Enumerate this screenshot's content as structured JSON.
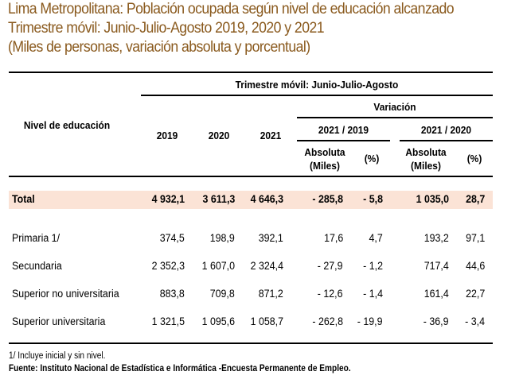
{
  "title": {
    "line1": "Lima Metropolitana: Población ocupada según nivel de educación alcanzado",
    "line2": "Trimestre móvil: Junio-Julio-Agosto  2019, 2020 y 2021",
    "line3": "(Miles de personas, variación absoluta y porcentual)"
  },
  "header": {
    "row_label": "Nivel de educación",
    "group": "Trimestre móvil: Junio-Julio-Agosto",
    "years": [
      "2019",
      "2020",
      "2021"
    ],
    "variation": "Variación",
    "comparisons": [
      "2021 / 2019",
      "2021 / 2020"
    ],
    "abs_line1": "Absoluta",
    "abs_line2": "(Miles)",
    "pct": "(%)"
  },
  "total": {
    "label": "Total",
    "values": [
      "4 932,1",
      "3 611,3",
      "4 646,3",
      "- 285,8",
      "- 5,8",
      "1 035,0",
      "28,7"
    ]
  },
  "rows": [
    {
      "label": "Primaria 1/",
      "values": [
        "374,5",
        "198,9",
        "392,1",
        "17,6",
        "4,7",
        "193,2",
        "97,1"
      ]
    },
    {
      "label": "Secundaria",
      "values": [
        "2 352,3",
        "1 607,0",
        "2 324,4",
        "- 27,9",
        "- 1,2",
        "717,4",
        "44,6"
      ]
    },
    {
      "label": "Superior no universitaria",
      "values": [
        "883,8",
        "709,8",
        "871,2",
        "- 12,6",
        "- 1,4",
        "161,4",
        "22,7"
      ]
    },
    {
      "label": "Superior universitaria",
      "values": [
        "1 321,5",
        "1 095,6",
        "1 058,7",
        "- 262,8",
        "- 19,9",
        "- 36,9",
        "- 3,4"
      ]
    }
  ],
  "footnote": "1/ Incluye inicial y sin nivel.",
  "source": "Fuente: Instituto Nacional de Estadística e Informática -Encuesta Permanente de Empleo.",
  "colors": {
    "title": "#8a5a1e",
    "total_band": "#fbe3d6"
  }
}
